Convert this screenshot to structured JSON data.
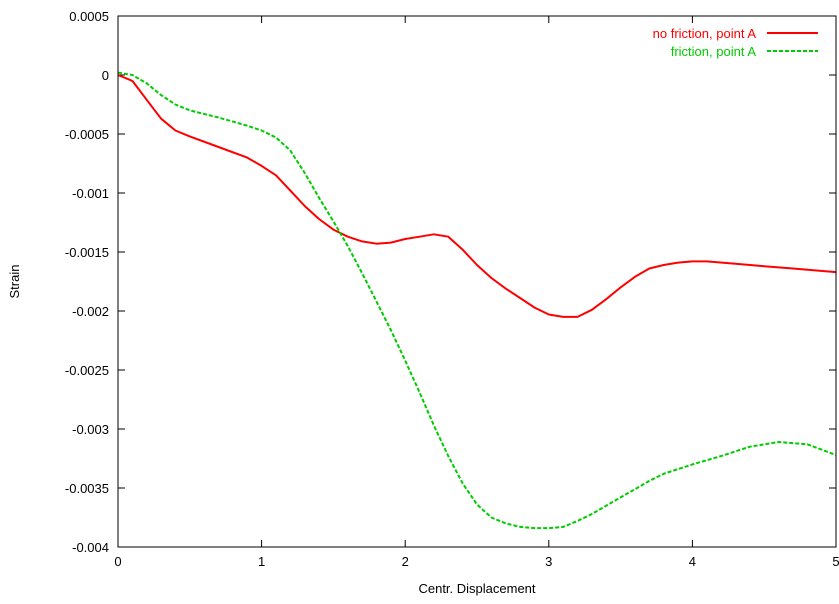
{
  "chart_data": {
    "type": "line",
    "title": "",
    "xlabel": "Centr. Displacement",
    "ylabel": "Strain",
    "xlim": [
      0,
      5
    ],
    "ylim": [
      -0.004,
      0.0005
    ],
    "x_ticks": [
      0,
      1,
      2,
      3,
      4,
      5
    ],
    "x_tick_labels": [
      "0",
      "1",
      "2",
      "3",
      "4",
      "5"
    ],
    "y_ticks": [
      0.0005,
      0,
      -0.0005,
      -0.001,
      -0.0015,
      -0.002,
      -0.0025,
      -0.003,
      -0.0035,
      -0.004
    ],
    "y_tick_labels": [
      "0.0005",
      "0",
      "-0.0005",
      "-0.001",
      "-0.0015",
      "-0.002",
      "-0.0025",
      "-0.003",
      "-0.0035",
      "-0.004"
    ],
    "grid": false,
    "legend_position": "top-right",
    "series": [
      {
        "name": "no friction, point A",
        "color": "#ff0000",
        "dash": "solid",
        "x": [
          0,
          0.1,
          0.2,
          0.3,
          0.4,
          0.5,
          0.7,
          0.9,
          1.0,
          1.1,
          1.2,
          1.3,
          1.4,
          1.5,
          1.6,
          1.7,
          1.8,
          1.9,
          2.0,
          2.1,
          2.2,
          2.3,
          2.4,
          2.5,
          2.6,
          2.7,
          2.8,
          2.9,
          3.0,
          3.1,
          3.2,
          3.3,
          3.4,
          3.5,
          3.6,
          3.7,
          3.8,
          3.9,
          4.0,
          4.1,
          4.3,
          4.5,
          4.7,
          5.0
        ],
        "y": [
          0,
          -5e-05,
          -0.00021,
          -0.00037,
          -0.00047,
          -0.00052,
          -0.00061,
          -0.0007,
          -0.00077,
          -0.00085,
          -0.00098,
          -0.00111,
          -0.00122,
          -0.00131,
          -0.00137,
          -0.00141,
          -0.00143,
          -0.00142,
          -0.00139,
          -0.00137,
          -0.00135,
          -0.00137,
          -0.00148,
          -0.00161,
          -0.00172,
          -0.00181,
          -0.00189,
          -0.00197,
          -0.00203,
          -0.00205,
          -0.00205,
          -0.00199,
          -0.0019,
          -0.0018,
          -0.00171,
          -0.00164,
          -0.00161,
          -0.00159,
          -0.00158,
          -0.00158,
          -0.0016,
          -0.00162,
          -0.00164,
          -0.00167
        ]
      },
      {
        "name": "friction, point A",
        "color": "#00cc00",
        "dash": "dashed",
        "x": [
          0,
          0.1,
          0.2,
          0.3,
          0.4,
          0.5,
          0.7,
          0.9,
          1.0,
          1.1,
          1.2,
          1.3,
          1.4,
          1.5,
          1.6,
          1.7,
          1.8,
          1.9,
          2.0,
          2.1,
          2.2,
          2.3,
          2.4,
          2.5,
          2.6,
          2.7,
          2.8,
          2.9,
          3.0,
          3.1,
          3.2,
          3.3,
          3.4,
          3.5,
          3.6,
          3.7,
          3.8,
          3.9,
          4.0,
          4.2,
          4.4,
          4.6,
          4.8,
          5.0
        ],
        "y": [
          2e-05,
          0,
          -7e-05,
          -0.00017,
          -0.00025,
          -0.0003,
          -0.00036,
          -0.00043,
          -0.00047,
          -0.00053,
          -0.00064,
          -0.00083,
          -0.00104,
          -0.00124,
          -0.00145,
          -0.00168,
          -0.00192,
          -0.00216,
          -0.00242,
          -0.00269,
          -0.00297,
          -0.00323,
          -0.00346,
          -0.00364,
          -0.00375,
          -0.0038,
          -0.00383,
          -0.00384,
          -0.00384,
          -0.00383,
          -0.00378,
          -0.00372,
          -0.00365,
          -0.00358,
          -0.00351,
          -0.00344,
          -0.00338,
          -0.00334,
          -0.0033,
          -0.00323,
          -0.00315,
          -0.00311,
          -0.00313,
          -0.00322
        ]
      }
    ]
  }
}
